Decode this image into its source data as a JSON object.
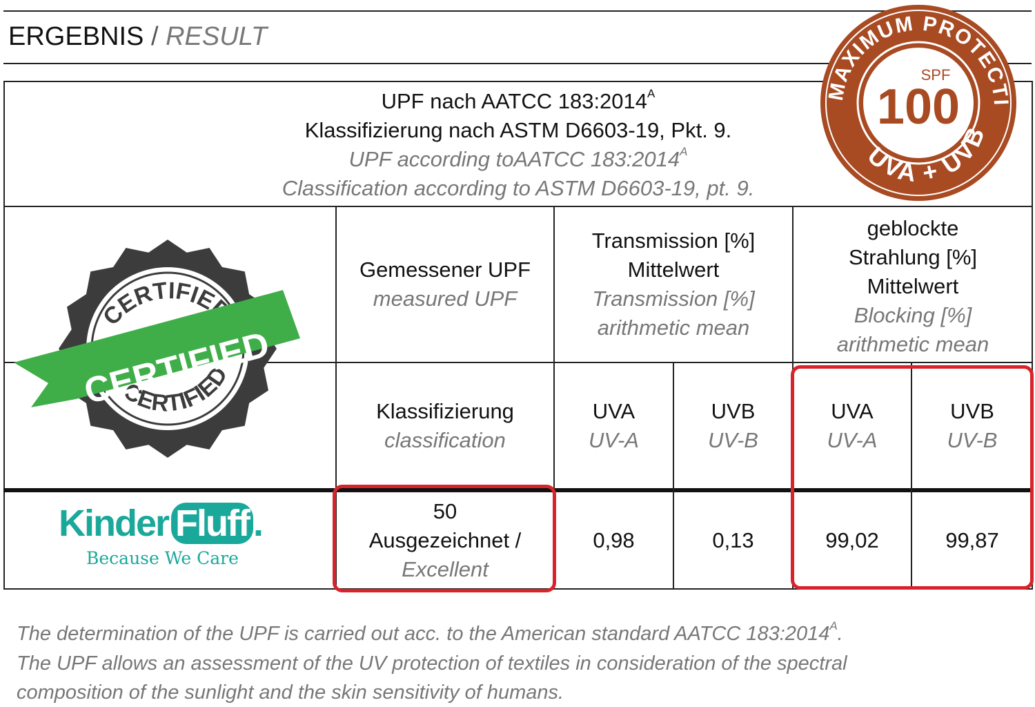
{
  "title": {
    "de": "ERGEBNIS",
    "sep": " / ",
    "en": "RESULT"
  },
  "badge": {
    "ring_top": "MAXIMUM PROTECTION",
    "ring_bottom": "UVA + UVB",
    "small": "SPF",
    "big": "100",
    "color": "#a84a22"
  },
  "seal": {
    "ring_top": "CERTIFIED",
    "ring_bottom": "CERTIFIED",
    "ribbon": "CERTIFIED",
    "ribbon_color": "#3fae49",
    "seal_color": "#3c3c3c"
  },
  "standard": {
    "line1": "UPF nach AATCC  183:2014",
    "line2": "Klassifizierung nach ASTM D6603-19, Pkt. 9.",
    "line3": "UPF according toAATCC  183:2014",
    "line4": "Classification according to ASTM D6603-19, pt. 9.",
    "sup": "A"
  },
  "headers": {
    "measured": {
      "de": "Gemessener UPF",
      "en": "measured UPF"
    },
    "transmission": {
      "de1": "Transmission [%]",
      "de2": "Mittelwert",
      "en1": "Transmission [%]",
      "en2": "arithmetic mean"
    },
    "blocking": {
      "de1": "geblockte",
      "de2": "Strahlung [%]",
      "de3": "Mittelwert",
      "en1": "Blocking [%]",
      "en2": "arithmetic mean"
    },
    "classification": {
      "de": "Klassifizierung",
      "en": "classification"
    },
    "uva": {
      "de": "UVA",
      "en": "UV-A"
    },
    "uvb": {
      "de": "UVB",
      "en": "UV-B"
    }
  },
  "brand": {
    "name1": "Kinder",
    "name2": "Fluff",
    "tagline": "Because We Care",
    "color": "#1aa89a"
  },
  "result": {
    "upf": "50",
    "class_de": "Ausgezeichnet /",
    "class_en": "Excellent",
    "trans_uva": "0,98",
    "trans_uvb": "0,13",
    "block_uva": "99,02",
    "block_uvb": "99,87"
  },
  "highlight_color": "#d9232a",
  "footnote": {
    "line1": "The determination of the UPF is carried out acc. to the  American  standard  AATCC  183:2014",
    "sup": "A",
    "line1_end": ".",
    "line2": "The  UPF allows an assessment of the UV protection of textiles in  consideration  of  the spectral",
    "line3": "composition   of   the  sunlight and the skin sensitivity of humans."
  }
}
